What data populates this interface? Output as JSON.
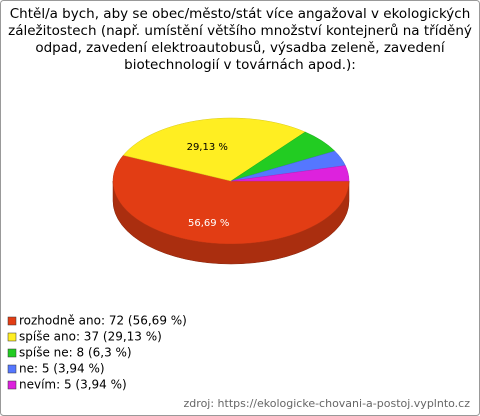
{
  "chart_data": {
    "type": "pie3d",
    "title": [
      "Chtěl/a bych, aby se obec/město/stát více angažoval v ekologických",
      "záležitostech (např. umístění většího množství kontejnerů na tříděný",
      "odpad, zavedení elektroautobusů, výsadba zeleně, zavedení",
      "biotechnologií v továrnách apod.):"
    ],
    "categories": [
      "rozhodně ano",
      "spíše ano",
      "spíše ne",
      "ne",
      "nevím"
    ],
    "values": [
      56.69,
      29.13,
      6.3,
      3.94,
      3.94
    ],
    "value_labels": [
      "56,69 %",
      "29,13 %",
      null,
      null,
      null
    ],
    "legend_labels": [
      "rozhodně ano: 72 (56,69 %)",
      "spíše ano: 37 (29,13 %)",
      "spíše ne: 8 (6,3 %)",
      "ne: 5 (3,94 %)",
      "nevím: 5 (3,94 %)"
    ],
    "colors": [
      "#e23d14",
      "#ffee22",
      "#22cc22",
      "#5577ff",
      "#dd22dd"
    ],
    "source": "zdroj: https://ekologicke-chovani-a-postoj.vyplnto.cz"
  }
}
